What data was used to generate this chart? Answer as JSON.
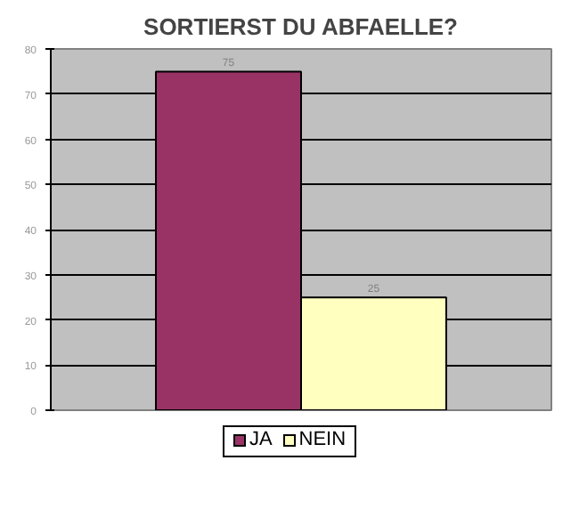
{
  "chart_data": {
    "type": "bar",
    "title": "SORTIERST DU ABFAELLE?",
    "categories": [
      null
    ],
    "series": [
      {
        "name": "JA",
        "color": "#993366",
        "values": [
          75
        ]
      },
      {
        "name": "NEIN",
        "color": "#ffffc0",
        "values": [
          25
        ]
      }
    ],
    "ylim": [
      0,
      80
    ],
    "yticks": [
      0,
      10,
      20,
      30,
      40,
      50,
      60,
      70,
      80
    ],
    "grid": "y",
    "data_labels": true,
    "legend": "bottom"
  }
}
